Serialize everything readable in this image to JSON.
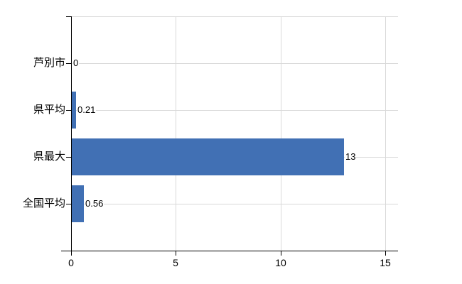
{
  "chart_data": {
    "type": "bar",
    "orientation": "horizontal",
    "title": "",
    "categories": [
      "芦別市",
      "県平均",
      "県最大",
      "全国平均"
    ],
    "values": [
      0,
      0.21,
      13,
      0.56
    ],
    "value_labels": [
      "0",
      "0.21",
      "13",
      "0.56"
    ],
    "x_axis": {
      "ticks": [
        0,
        5,
        10,
        15
      ],
      "tick_labels": [
        "0",
        "5",
        "10",
        "15"
      ],
      "range": [
        0,
        15.6
      ]
    },
    "xlabel": "",
    "ylabel": "",
    "grid": "on",
    "legend": "none",
    "colors": {
      "bar": "#4170b4",
      "gridline": "#d9d9d9",
      "axis": "#000000",
      "text": "#000000",
      "background": "#ffffff"
    }
  }
}
